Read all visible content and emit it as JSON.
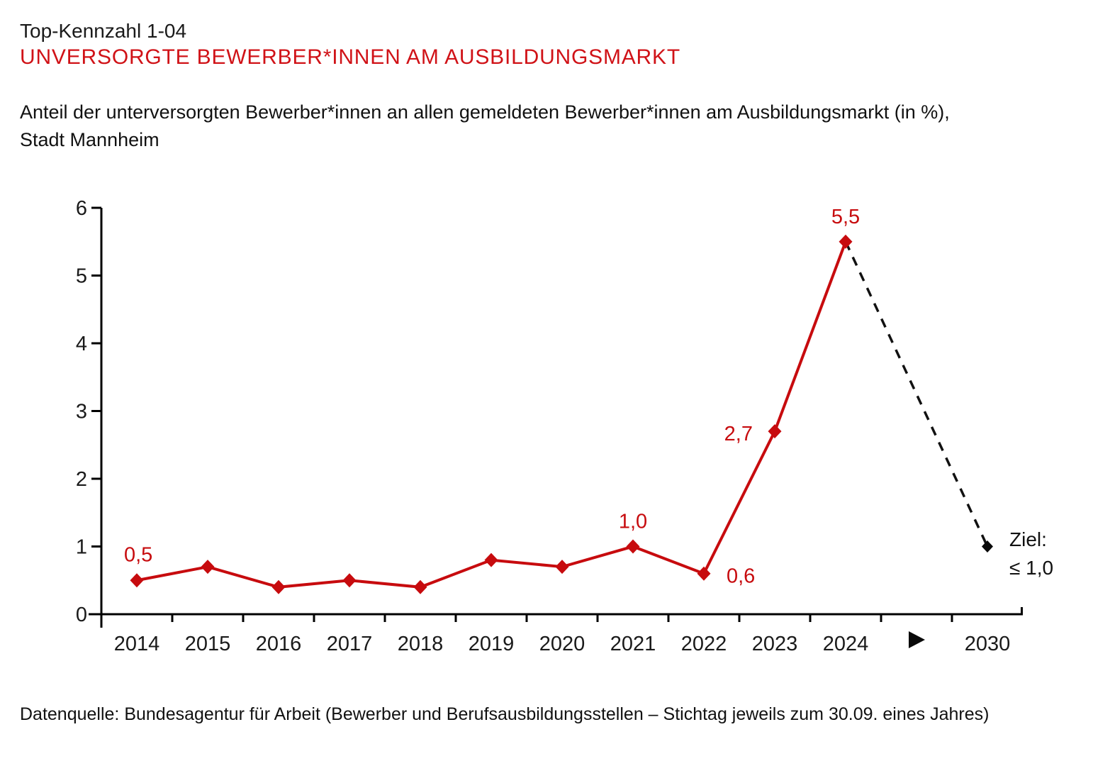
{
  "header": {
    "kicker": "Top-Kennzahl 1-04",
    "title": "UNVERSORGTE BEWERBER*INNEN AM AUSBILDUNGSMARKT",
    "subtitle_line1": "Anteil der unterversorgten Bewerber*innen an allen gemeldeten Bewerber*innen am Ausbildungsmarkt (in %),",
    "subtitle_line2": "Stadt Mannheim"
  },
  "chart_data": {
    "type": "line",
    "title": "UNVERSORGTE BEWERBER*INNEN AM AUSBILDUNGSMARKT",
    "xlabel": "",
    "ylabel": "",
    "unit": "%",
    "grid": false,
    "legend": false,
    "categories": [
      "2014",
      "2015",
      "2016",
      "2017",
      "2018",
      "2019",
      "2020",
      "2021",
      "2022",
      "2023",
      "2024"
    ],
    "values": [
      0.5,
      0.7,
      0.4,
      0.5,
      0.4,
      0.8,
      0.7,
      1.0,
      0.6,
      2.7,
      5.5
    ],
    "ylim": [
      0,
      6
    ],
    "yticks": [
      "0",
      "1",
      "2",
      "3",
      "4",
      "5",
      "6"
    ],
    "x_gap_symbol": "arrow-right",
    "target": {
      "category": "2030",
      "value": 1.0,
      "line_style": "dashed",
      "marker": "black-diamond",
      "annotation_line1": "Ziel:",
      "annotation_line2": "≤ 1,0"
    },
    "point_labels": [
      {
        "category": "2014",
        "text": "0,5",
        "placement": "above-left"
      },
      {
        "category": "2021",
        "text": "1,0",
        "placement": "above"
      },
      {
        "category": "2022",
        "text": "0,6",
        "placement": "right"
      },
      {
        "category": "2023",
        "text": "2,7",
        "placement": "left"
      },
      {
        "category": "2024",
        "text": "5,5",
        "placement": "above"
      }
    ],
    "colors": {
      "line": "#c70b0e",
      "marker": "#c70b0e",
      "point_label": "#c70b0e",
      "target_line": "#111111",
      "target_marker": "#0a0a0a",
      "axis": "#000000",
      "tick_label": "#1a1a1a",
      "title": "#d01217"
    }
  },
  "footer": {
    "source": "Datenquelle: Bundesagentur für Arbeit (Bewerber und Berufsausbildungsstellen – Stichtag jeweils zum 30.09. eines Jahres)"
  }
}
